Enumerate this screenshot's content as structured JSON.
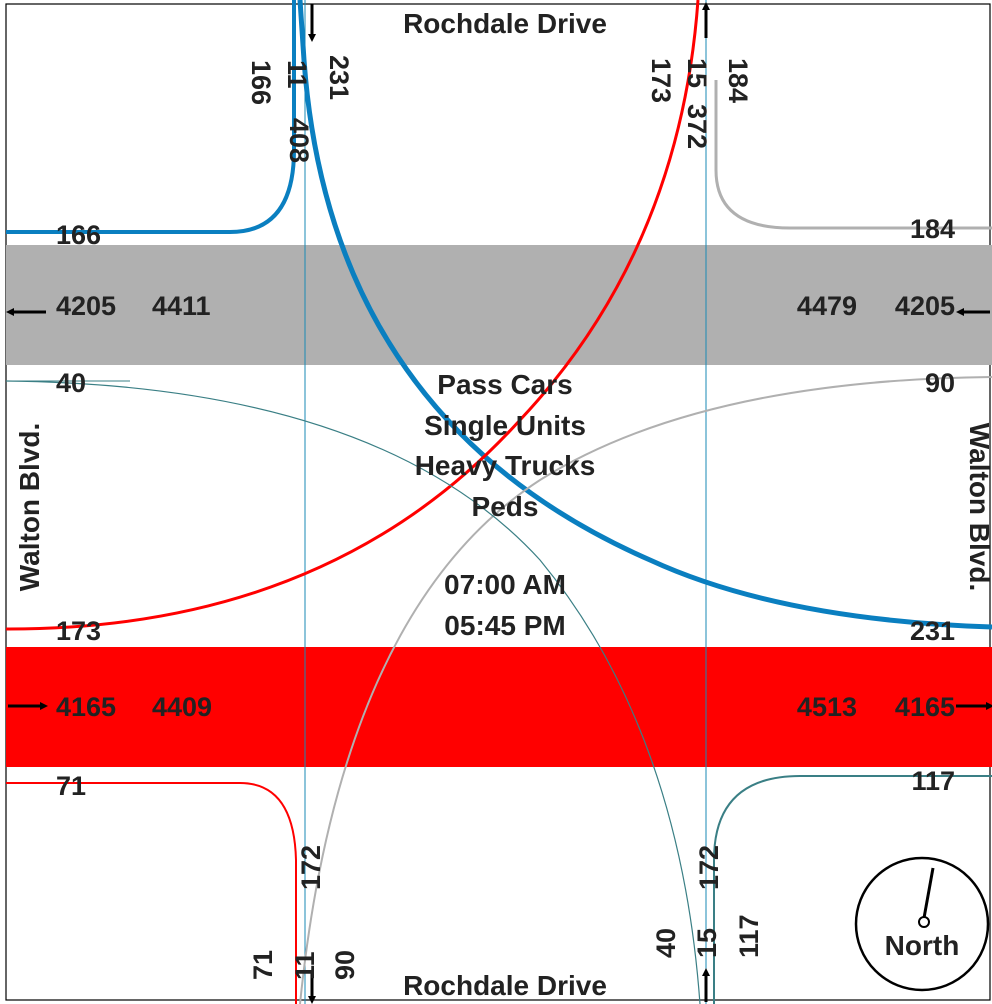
{
  "streets": {
    "north": "Rochdale Drive",
    "south": "Rochdale Drive",
    "west": "Walton Blvd.",
    "east": "Walton Blvd."
  },
  "legend": {
    "line1": "Pass Cars",
    "line2": "Single Units",
    "line3": "Heavy Trucks",
    "line4": "Peds"
  },
  "times": {
    "start": "07:00 AM",
    "end": "05:45 PM"
  },
  "compass": {
    "label": "North"
  },
  "colors": {
    "westbound_band": "#b0b0b0",
    "eastbound_band": "#ff0000",
    "blue_movement": "#0a7fc0",
    "red_movement": "#ff0000",
    "gray_movement": "#b0b0b0",
    "teal_movement": "#3a7f85",
    "guide_line": "#1a8ab5"
  },
  "volumes": {
    "north_leg": {
      "right": "166",
      "thru": "11",
      "left": "231",
      "total_in": "408",
      "out_left": "173",
      "out_thru": "15",
      "out_right": "184",
      "total_out": "372"
    },
    "south_leg": {
      "left": "71",
      "thru": "11",
      "right": "90",
      "total_out": "172",
      "in_left": "40",
      "in_thru": "15",
      "in_right": "117",
      "total_in": "172"
    },
    "west_leg": {
      "top": "166",
      "wb_a": "4205",
      "wb_b": "4411",
      "upper_mid": "40",
      "lower_mid": "173",
      "eb_a": "4165",
      "eb_b": "4409",
      "bottom": "71"
    },
    "east_leg": {
      "top": "184",
      "wb_a": "4479",
      "wb_b": "4205",
      "upper_mid": "90",
      "lower_mid": "231",
      "eb_a": "4513",
      "eb_b": "4165",
      "bottom": "117"
    }
  }
}
